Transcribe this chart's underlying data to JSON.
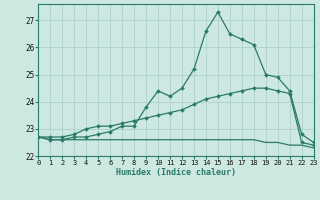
{
  "xlabel": "Humidex (Indice chaleur)",
  "x_values": [
    0,
    1,
    2,
    3,
    4,
    5,
    6,
    7,
    8,
    9,
    10,
    11,
    12,
    13,
    14,
    15,
    16,
    17,
    18,
    19,
    20,
    21,
    22,
    23
  ],
  "line1": [
    22.7,
    22.6,
    22.6,
    22.7,
    22.7,
    22.8,
    22.9,
    23.1,
    23.1,
    23.8,
    24.4,
    24.2,
    24.5,
    25.2,
    26.6,
    27.3,
    26.5,
    26.3,
    26.1,
    25.0,
    24.9,
    24.4,
    22.8,
    22.5
  ],
  "line2": [
    22.7,
    22.7,
    22.7,
    22.8,
    23.0,
    23.1,
    23.1,
    23.2,
    23.3,
    23.4,
    23.5,
    23.6,
    23.7,
    23.9,
    24.1,
    24.2,
    24.3,
    24.4,
    24.5,
    24.5,
    24.4,
    24.3,
    22.5,
    22.4
  ],
  "line3": [
    22.7,
    22.6,
    22.6,
    22.6,
    22.6,
    22.6,
    22.6,
    22.6,
    22.6,
    22.6,
    22.6,
    22.6,
    22.6,
    22.6,
    22.6,
    22.6,
    22.6,
    22.6,
    22.6,
    22.5,
    22.5,
    22.4,
    22.4,
    22.3
  ],
  "line_color": "#2a7a6a",
  "bg_color": "#cce8e0",
  "grid_color": "#aacccc",
  "ylim": [
    22.0,
    27.6
  ],
  "yticks": [
    22,
    23,
    24,
    25,
    26,
    27
  ],
  "xlim": [
    0,
    23
  ]
}
